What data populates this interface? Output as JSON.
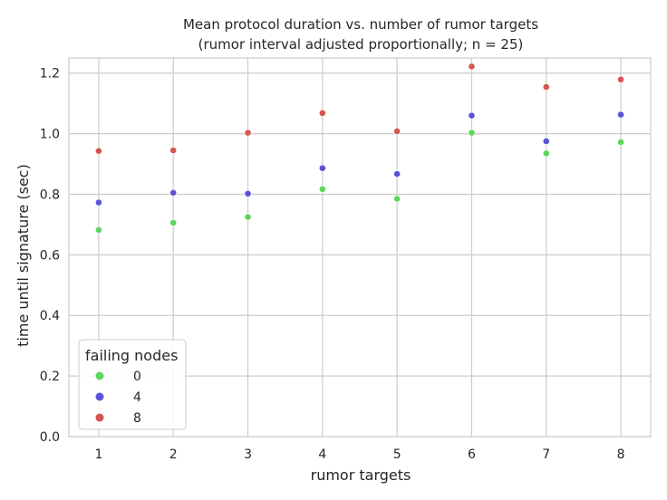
{
  "chart_data": {
    "type": "scatter",
    "title_line1": "Mean protocol duration vs. number of rumor targets",
    "title_line2": "(rumor interval adjusted proportionally; n = 25)",
    "xlabel": "rumor targets",
    "ylabel": "time until signature (sec)",
    "x": [
      1,
      2,
      3,
      4,
      5,
      6,
      7,
      8
    ],
    "x_ticks": [
      "1",
      "2",
      "3",
      "4",
      "5",
      "6",
      "7",
      "8"
    ],
    "y_ticks": [
      "0.0",
      "0.2",
      "0.4",
      "0.6",
      "0.8",
      "1.0",
      "1.2"
    ],
    "ylim": [
      0,
      1.25
    ],
    "grid": true,
    "legend": {
      "title": "failing nodes",
      "placement": "lower-left"
    },
    "series": [
      {
        "name": "0",
        "color": "#5bd75b",
        "values": [
          0.682,
          0.706,
          0.725,
          0.817,
          0.785,
          1.003,
          0.935,
          0.972
        ]
      },
      {
        "name": "4",
        "color": "#5b53d6",
        "values": [
          0.773,
          0.805,
          0.802,
          0.886,
          0.867,
          1.06,
          0.975,
          1.063
        ]
      },
      {
        "name": "8",
        "color": "#d65550",
        "values": [
          0.943,
          0.945,
          1.003,
          1.068,
          1.008,
          1.222,
          1.154,
          1.179
        ]
      }
    ]
  }
}
